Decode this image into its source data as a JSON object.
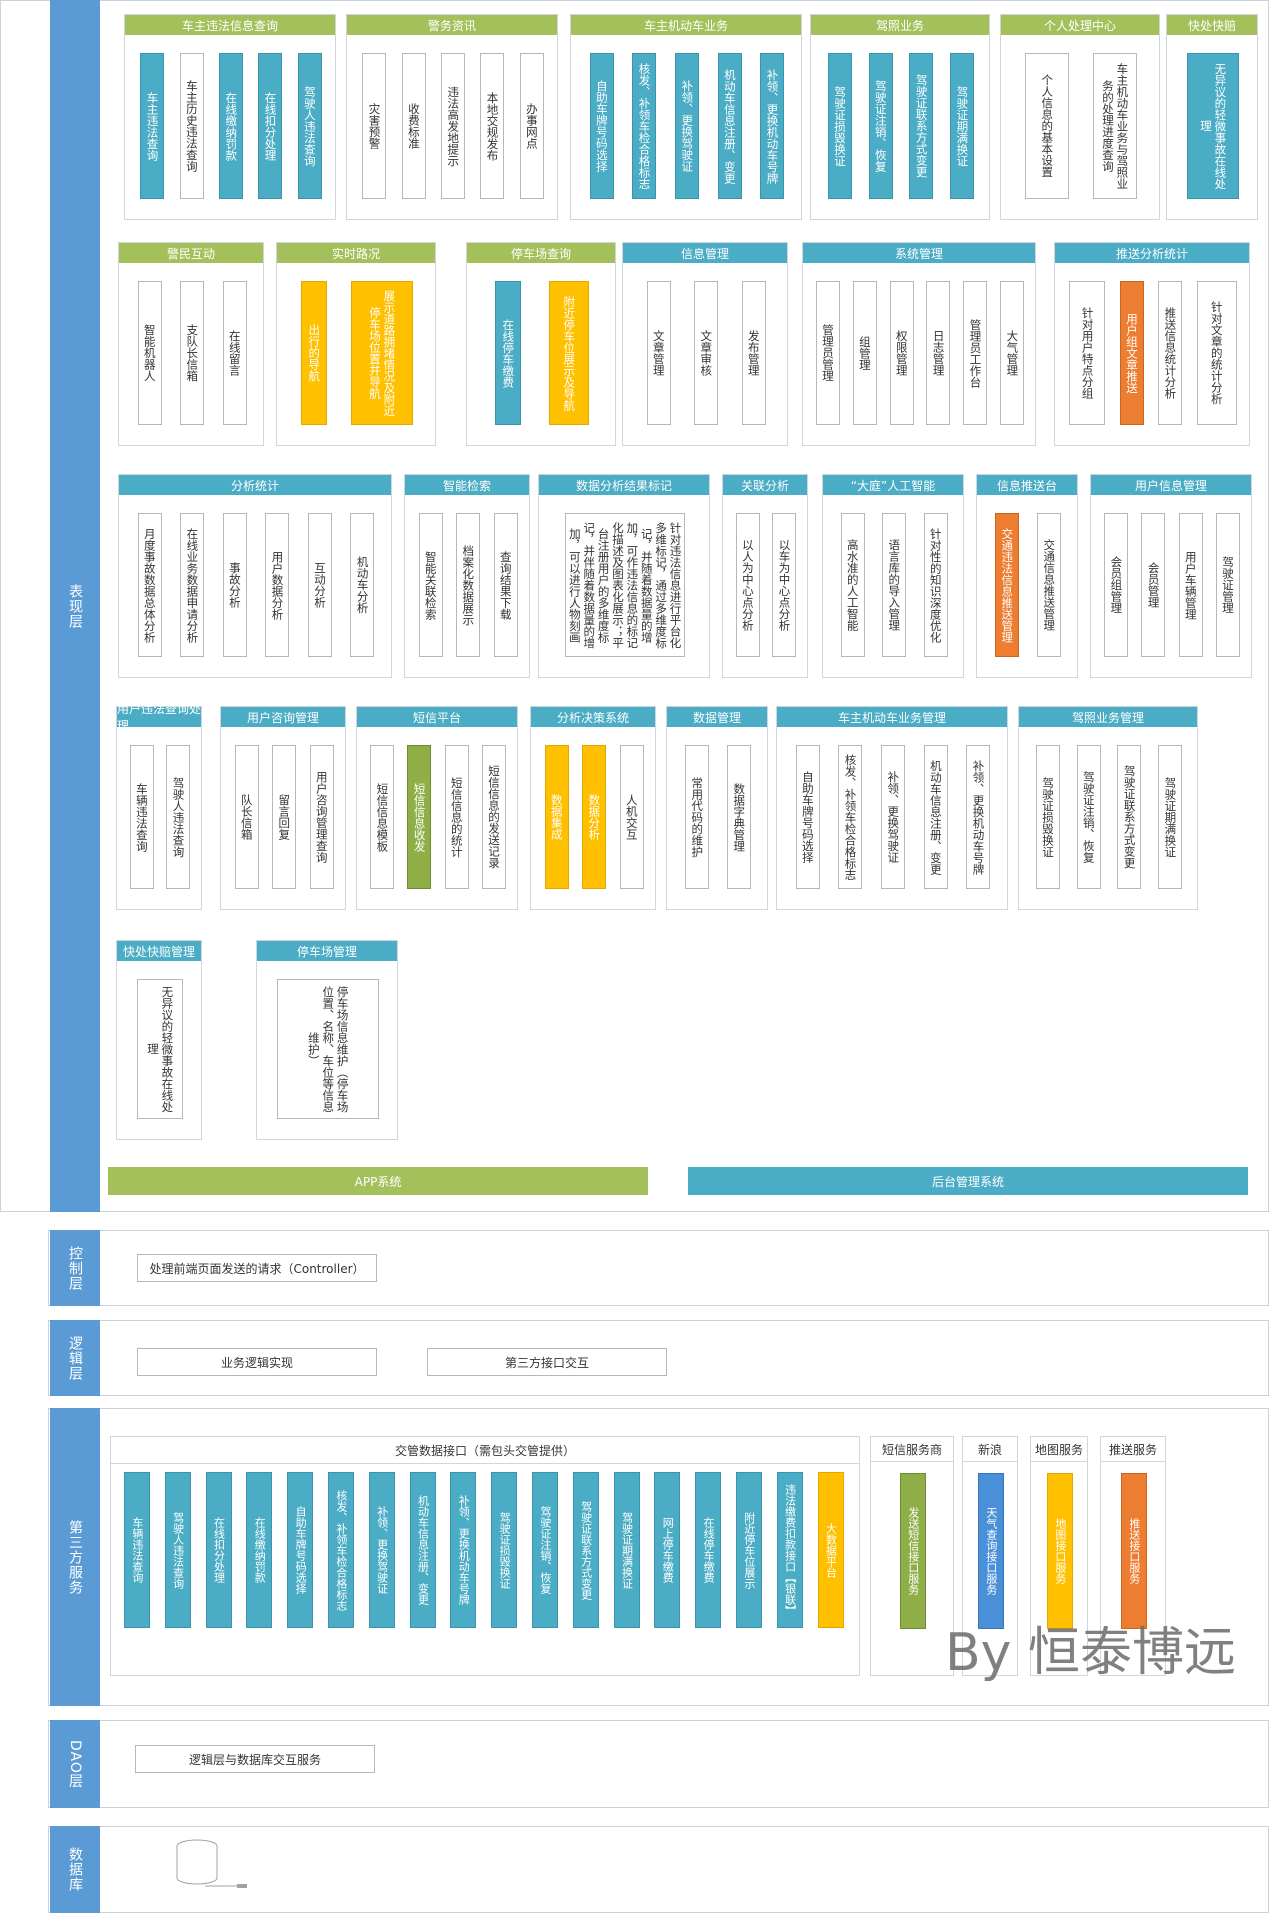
{
  "layers": {
    "presentation": "表现层",
    "control": "控制层",
    "logic": "逻辑层",
    "third_party": "第三方服务",
    "dao": "DAO层",
    "database": "数据库"
  },
  "presentation": {
    "r1": [
      {
        "title": "车主违法信息查询",
        "items": [
          "车主违法查询",
          "车主历史违法查询",
          "在线缴纳罚款",
          "在线扣分处理",
          "驾驶人违法查询"
        ]
      },
      {
        "title": "警务资讯",
        "items": [
          "灾害预警",
          "收费标准",
          "违法高发地提示",
          "本地交规发布",
          "办事网点"
        ]
      },
      {
        "title": "车主机动车业务",
        "items": [
          "自助车牌号码选择",
          "核发、补领车检合格标志",
          "补领、更换驾驶证",
          "机动车信息注册、变更",
          "补领、更换机动车号牌"
        ]
      },
      {
        "title": "驾照业务",
        "items": [
          "驾驶证损毁换证",
          "驾驶证注销、恢复",
          "驾驶证联系方式变更",
          "驾驶证期满换证"
        ]
      },
      {
        "title": "个人处理中心",
        "items": [
          "个人信息的基本设置",
          "车主机动车业务与驾照业务的处理进度查询"
        ]
      },
      {
        "title": "快处快赔",
        "items": [
          "无异议的轻微事故在线处理"
        ]
      }
    ],
    "r2": [
      {
        "title": "警民互动",
        "items": [
          "智能机器人",
          "支队长信箱",
          "在线留言"
        ]
      },
      {
        "title": "实时路况",
        "items": [
          "出行的导航",
          "展示道路拥堵情况及附近停车场位置并导航"
        ]
      },
      {
        "title": "停车场查询",
        "items": [
          "在线停车缴费",
          "附近停车位展示及导航"
        ]
      },
      {
        "title": "信息管理",
        "items": [
          "文章管理",
          "文章审核",
          "发布管理"
        ]
      },
      {
        "title": "系统管理",
        "items": [
          "管理员管理",
          "组管理",
          "权限管理",
          "日志管理",
          "管理员工作台",
          "大气管理"
        ]
      },
      {
        "title": "推送分析统计",
        "items": [
          "针对用户特点分组",
          "用户组文章推送",
          "推送信息统计分析",
          "针对文章的统计分析"
        ]
      }
    ],
    "r3": [
      {
        "title": "分析统计",
        "items": [
          "月度事故数据总体分析",
          "在线业务数据申请分析",
          "事故分析",
          "用户数据分析",
          "互动分析",
          "机动车分析"
        ]
      },
      {
        "title": "智能检索",
        "items": [
          "智能关联检索",
          "档案化数据展示",
          "查询结果下载"
        ]
      },
      {
        "title": "数据分析结果标记",
        "items": [
          "针对违法信息进行平台化多维标记，通过多维度标记，并随着数据量的增加，可作违法信息的标记化描述及图表化展示；平台注册用户的多维度标记，并伴随着数据量的增加，可以进行人物刻画"
        ]
      },
      {
        "title": "关联分析",
        "items": [
          "以人为中心点分析",
          "以车为中心点分析"
        ]
      },
      {
        "title": "“大庭”人工智能",
        "items": [
          "高水准的人工智能",
          "语言库的导入管理",
          "针对性的知识深度优化"
        ]
      },
      {
        "title": "信息推送台",
        "items": [
          "交通违法信息推送管理",
          "交通信息推送管理"
        ]
      },
      {
        "title": "用户信息管理",
        "items": [
          "会员组管理",
          "会员管理",
          "用户车辆管理",
          "驾驶证管理"
        ]
      }
    ],
    "r4": [
      {
        "title": "用户违法查询处理",
        "items": [
          "车辆违法查询",
          "驾驶人违法查询"
        ]
      },
      {
        "title": "用户咨询管理",
        "items": [
          "队长信箱",
          "留言回复",
          "用户咨询管理查询"
        ]
      },
      {
        "title": "短信平台",
        "items": [
          "短信信息模板",
          "短信信息收发",
          "短信信息的统计",
          "短信信息的发送记录"
        ]
      },
      {
        "title": "分析决策系统",
        "items": [
          "数据集成",
          "数据分析",
          "人机交互"
        ]
      },
      {
        "title": "数据管理",
        "items": [
          "常用代码的维护",
          "数据字典管理"
        ]
      },
      {
        "title": "车主机动车业务管理",
        "items": [
          "自助车牌号码选择",
          "核发、补领车检合格标志",
          "补领、更换驾驶证",
          "机动车信息注册、变更",
          "补领、更换机动车号牌"
        ]
      },
      {
        "title": "驾照业务管理",
        "items": [
          "驾驶证损毁换证",
          "驾驶证注销、恢复",
          "驾驶证联系方式变更",
          "驾驶证期满换证"
        ]
      }
    ],
    "r5": [
      {
        "title": "快处快赔管理",
        "items": [
          "无异议的轻微事故在线处理"
        ]
      },
      {
        "title": "停车场管理",
        "items": [
          "停车场信息维护（停车场位置、名称、车位等信息维护）"
        ]
      }
    ],
    "app_bar": "APP系统",
    "admin_bar": "后台管理系统"
  },
  "control": {
    "items": [
      "处理前端页面发送的请求（Controller）"
    ]
  },
  "logic": {
    "items": [
      "业务逻辑实现",
      "第三方接口交互"
    ]
  },
  "third_party": {
    "traffic_title": "交管数据接口（需包头交管提供）",
    "traffic_items": [
      "车辆违法查询",
      "驾驶人违法查询",
      "在线扣分处理",
      "在线缴纳罚款",
      "自助车牌号码选择",
      "核发、补领车检合格标志",
      "补领、更换驾驶证",
      "机动车信息注册、变更",
      "补领、更换机动车号牌",
      "驾驶证损毁换证",
      "驾驶证注销、恢复",
      "驾驶证联系方式变更",
      "驾驶证期满换证",
      "网上停车缴费",
      "在线停车缴费",
      "附近停车位展示",
      "违法缴费扣款接口【银联】",
      "大数据平台"
    ],
    "providers": [
      {
        "title": "短信服务商",
        "item": "发送短信接口服务"
      },
      {
        "title": "新浪",
        "item": "天气查询接口服务"
      },
      {
        "title": "地图服务",
        "item": "地图接口服务"
      },
      {
        "title": "推送服务",
        "item": "推送接口服务"
      }
    ]
  },
  "dao": {
    "items": [
      "逻辑层与数据库交互服务"
    ]
  },
  "watermark": "By 恒泰博远"
}
